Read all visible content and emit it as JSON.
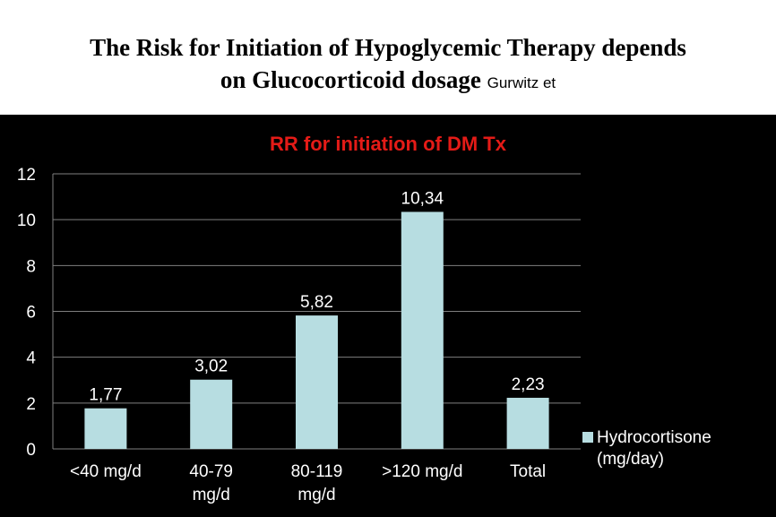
{
  "slide": {
    "title_line1": "The Risk for Initiation of Hypoglycemic Therapy depends",
    "title_line2": "on Glucocorticoid dosage",
    "author": "Gurwitz et"
  },
  "chart_data": {
    "type": "bar",
    "title": "RR for initiation of DM Tx",
    "title_color": "#e41b17",
    "bar_color": "#b7dde1",
    "background": "#000000",
    "categories": [
      "<40 mg/d",
      "40-79 mg/d",
      "80-119 mg/d",
      ">120 mg/d",
      "Total"
    ],
    "category_lines": [
      [
        "<40 mg/d"
      ],
      [
        "40-79",
        "mg/d"
      ],
      [
        "80-119",
        "mg/d"
      ],
      [
        ">120 mg/d"
      ],
      [
        "Total"
      ]
    ],
    "series": [
      {
        "name": "Hydrocortisone (mg/day)",
        "values": [
          1.77,
          3.02,
          5.82,
          10.34,
          2.23
        ]
      }
    ],
    "value_labels": [
      "1,77",
      "3,02",
      "5,82",
      "10,34",
      "2,23"
    ],
    "legend_lines": [
      "Hydrocortisone",
      "(mg/day)"
    ],
    "legend_position": "right",
    "ylim": [
      0,
      12
    ],
    "yticks": [
      0,
      2,
      4,
      6,
      8,
      10,
      12
    ],
    "grid": true
  }
}
